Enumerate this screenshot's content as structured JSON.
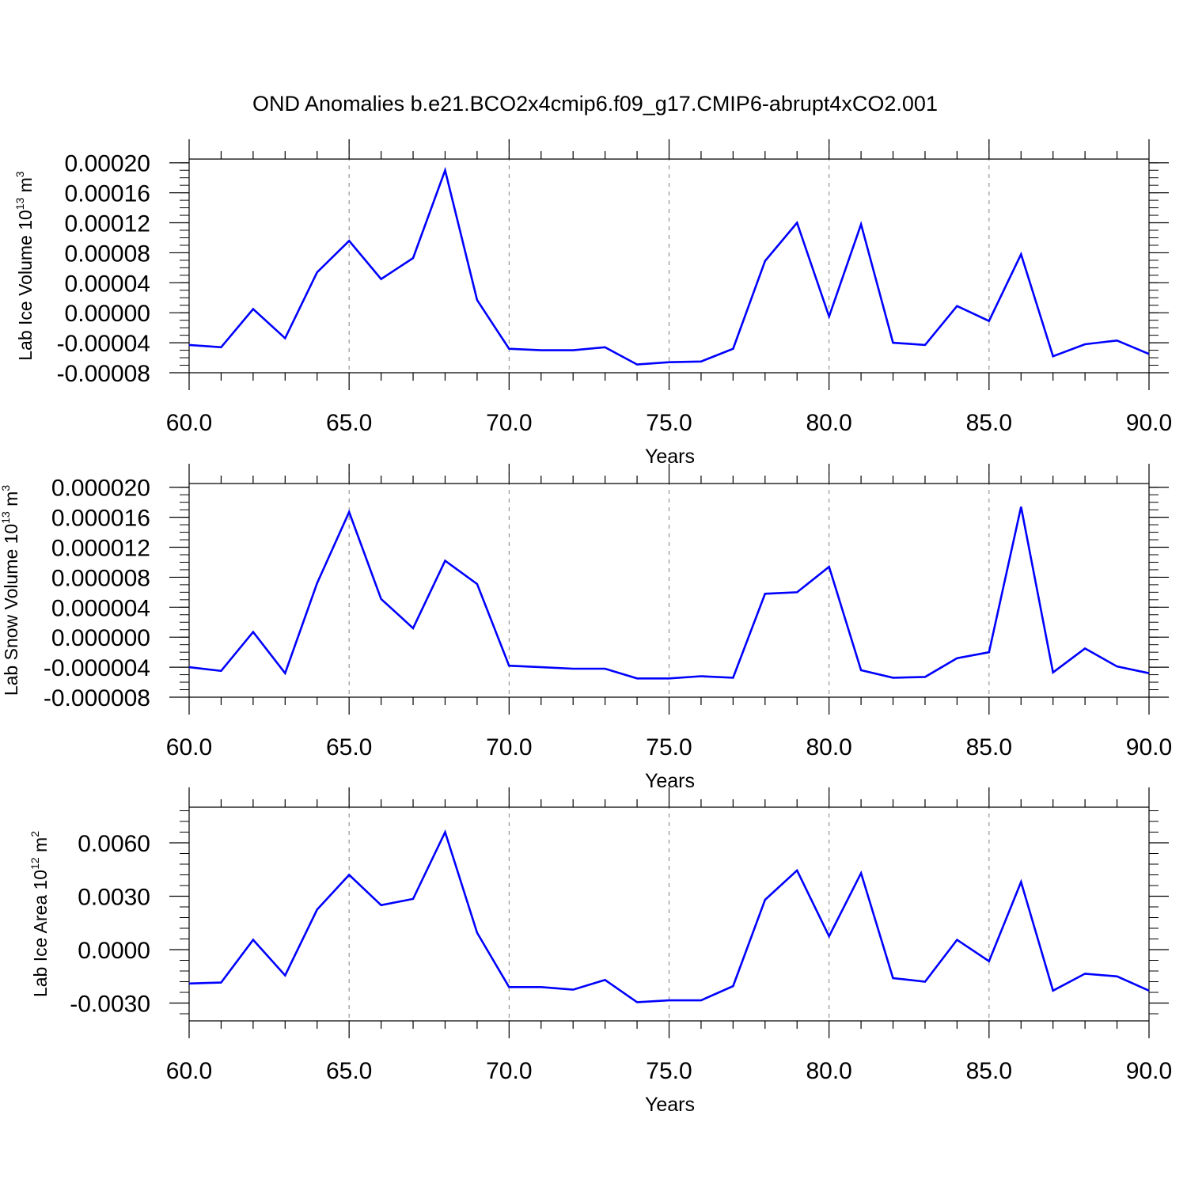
{
  "title": "OND Anomalies b.e21.BCO2x4cmip6.f09_g17.CMIP6-abrupt4xCO2.001",
  "colors": {
    "line": "#0000ff",
    "axis": "#000000",
    "grid": "#808080"
  },
  "chart_data": [
    {
      "type": "line",
      "ylabel": {
        "base": "Lab Ice Volume 10",
        "exponent": "13",
        "unit": " m",
        "unit_exponent": "3"
      },
      "xlabel": "Years",
      "xlim": [
        60,
        90
      ],
      "ylim": [
        -8e-05,
        0.000205
      ],
      "x_ticks": [
        "60.0",
        "65.0",
        "70.0",
        "75.0",
        "80.0",
        "85.0",
        "90.0"
      ],
      "y_ticks": [
        {
          "value": 0.0002,
          "label": "0.00020"
        },
        {
          "value": 0.00016,
          "label": "0.00016"
        },
        {
          "value": 0.00012,
          "label": "0.00012"
        },
        {
          "value": 8e-05,
          "label": "0.00008"
        },
        {
          "value": 4e-05,
          "label": "0.00004"
        },
        {
          "value": 0.0,
          "label": "0.00000"
        },
        {
          "value": -4e-05,
          "label": "-0.00004"
        },
        {
          "value": -8e-05,
          "label": "-0.00008"
        }
      ],
      "minor_y_step": 1e-05,
      "grid_x": [
        65,
        70,
        75,
        80,
        85
      ],
      "x": [
        60,
        61,
        62,
        63,
        64,
        65,
        66,
        67,
        68,
        69,
        70,
        71,
        72,
        73,
        74,
        75,
        76,
        77,
        78,
        79,
        80,
        81,
        82,
        83,
        84,
        85,
        86,
        87,
        88,
        89,
        90
      ],
      "series": [
        {
          "values": [
            -4.3e-05,
            -4.6e-05,
            5e-06,
            -3.4e-05,
            5.4e-05,
            9.6e-05,
            4.5e-05,
            7.3e-05,
            0.00019,
            1.7e-05,
            -4.8e-05,
            -5e-05,
            -5e-05,
            -4.6e-05,
            -6.9e-05,
            -6.6e-05,
            -6.5e-05,
            -4.8e-05,
            6.9e-05,
            0.00012,
            -5e-06,
            0.000118,
            -4e-05,
            -4.3e-05,
            9e-06,
            -1.1e-05,
            7.8e-05,
            -5.8e-05,
            -4.2e-05,
            -3.7e-05,
            -5.5e-05
          ]
        }
      ]
    },
    {
      "type": "line",
      "ylabel": {
        "base": "Lab Snow Volume 10",
        "exponent": "13",
        "unit": " m",
        "unit_exponent": "3"
      },
      "xlabel": "Years",
      "xlim": [
        60,
        90
      ],
      "ylim": [
        -8e-06,
        2.05e-05
      ],
      "x_ticks": [
        "60.0",
        "65.0",
        "70.0",
        "75.0",
        "80.0",
        "85.0",
        "90.0"
      ],
      "y_ticks": [
        {
          "value": 2e-05,
          "label": "0.000020"
        },
        {
          "value": 1.6e-05,
          "label": "0.000016"
        },
        {
          "value": 1.2e-05,
          "label": "0.000012"
        },
        {
          "value": 8e-06,
          "label": "0.000008"
        },
        {
          "value": 4e-06,
          "label": "0.000004"
        },
        {
          "value": 0.0,
          "label": "0.000000"
        },
        {
          "value": -4e-06,
          "label": "-0.000004"
        },
        {
          "value": -8e-06,
          "label": "-0.000008"
        }
      ],
      "minor_y_step": 1e-06,
      "grid_x": [
        65,
        70,
        75,
        80,
        85
      ],
      "x": [
        60,
        61,
        62,
        63,
        64,
        65,
        66,
        67,
        68,
        69,
        70,
        71,
        72,
        73,
        74,
        75,
        76,
        77,
        78,
        79,
        80,
        81,
        82,
        83,
        84,
        85,
        86,
        87,
        88,
        89,
        90
      ],
      "series": [
        {
          "values": [
            -4e-06,
            -4.5e-06,
            7e-07,
            -4.8e-06,
            7.2e-06,
            1.67e-05,
            5.1e-06,
            1.2e-06,
            1.02e-05,
            7.1e-06,
            -3.8e-06,
            -4e-06,
            -4.2e-06,
            -4.2e-06,
            -5.5e-06,
            -5.5e-06,
            -5.2e-06,
            -5.4e-06,
            5.8e-06,
            6e-06,
            9.4e-06,
            -4.4e-06,
            -5.4e-06,
            -5.3e-06,
            -2.8e-06,
            -2e-06,
            1.74e-05,
            -4.7e-06,
            -1.5e-06,
            -3.9e-06,
            -4.8e-06
          ]
        }
      ]
    },
    {
      "type": "line",
      "ylabel": {
        "base": "Lab Ice Area 10",
        "exponent": "12",
        "unit": " m",
        "unit_exponent": "2"
      },
      "xlabel": "Years",
      "xlim": [
        60,
        90
      ],
      "ylim": [
        -0.004,
        0.008
      ],
      "x_ticks": [
        "60.0",
        "65.0",
        "70.0",
        "75.0",
        "80.0",
        "85.0",
        "90.0"
      ],
      "y_ticks": [
        {
          "value": 0.006,
          "label": "0.0060"
        },
        {
          "value": 0.003,
          "label": "0.0030"
        },
        {
          "value": 0.0,
          "label": "0.0000"
        },
        {
          "value": -0.003,
          "label": "-0.0030"
        }
      ],
      "minor_y_step": 0.0006,
      "grid_x": [
        65,
        70,
        75,
        80,
        85
      ],
      "x": [
        60,
        61,
        62,
        63,
        64,
        65,
        66,
        67,
        68,
        69,
        70,
        71,
        72,
        73,
        74,
        75,
        76,
        77,
        78,
        79,
        80,
        81,
        82,
        83,
        84,
        85,
        86,
        87,
        88,
        89,
        90
      ],
      "series": [
        {
          "values": [
            -0.0019,
            -0.00185,
            0.00055,
            -0.00145,
            0.00225,
            0.0042,
            0.0025,
            0.00285,
            0.0066,
            0.00095,
            -0.0021,
            -0.0021,
            -0.00225,
            -0.0017,
            -0.00295,
            -0.00285,
            -0.00285,
            -0.00205,
            0.0028,
            0.00445,
            0.00075,
            0.0043,
            -0.0016,
            -0.0018,
            0.00055,
            -0.00065,
            0.0038,
            -0.0023,
            -0.00135,
            -0.0015,
            -0.0023
          ]
        }
      ]
    }
  ]
}
